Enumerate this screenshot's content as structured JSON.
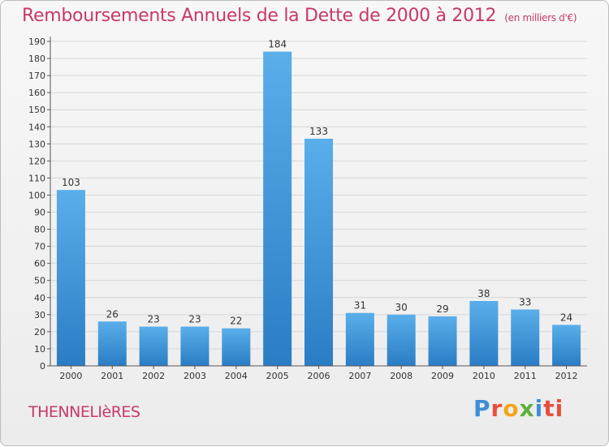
{
  "title": "Remboursements Annuels de la Dette de 2000 à 2012",
  "subtitle": "(en milliers d'€)",
  "commune": "THENNELIèRES",
  "logo": "Proxiti",
  "colors": {
    "title": "#c8386b",
    "bar_top": "#5aaeea",
    "bar_bottom": "#2a7dc4",
    "grid": "#d6d6d6"
  },
  "chart_data": {
    "type": "bar",
    "title": "Remboursements Annuels de la Dette de 2000 à 2012",
    "subtitle": "(en milliers d'€)",
    "categories": [
      "2000",
      "2001",
      "2002",
      "2003",
      "2004",
      "2005",
      "2006",
      "2007",
      "2008",
      "2009",
      "2010",
      "2011",
      "2012"
    ],
    "values": [
      103,
      26,
      23,
      23,
      22,
      184,
      133,
      31,
      30,
      29,
      38,
      33,
      24
    ],
    "ylim": [
      0,
      190
    ],
    "ytick_step": 10,
    "grid": true,
    "data_labels": true
  }
}
